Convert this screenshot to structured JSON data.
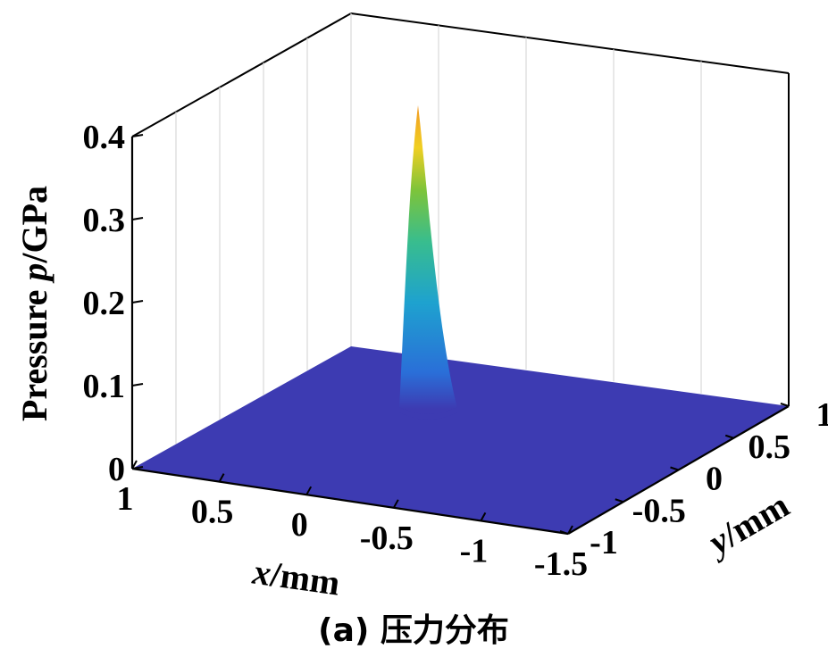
{
  "chart_data": {
    "type": "surface3d",
    "zlabel_parts": [
      "Pressure ",
      "p",
      "/GPa"
    ],
    "xlabel_parts": [
      "x",
      "/mm"
    ],
    "ylabel_parts": [
      "y",
      "/mm"
    ],
    "x_ticks": [
      "1",
      "0.5",
      "0",
      "-0.5",
      "-1",
      "-1.5"
    ],
    "x_tick_values": [
      1,
      0.5,
      0,
      -0.5,
      -1,
      -1.5
    ],
    "y_ticks": [
      "-1",
      "-0.5",
      "0",
      "0.5",
      "1"
    ],
    "y_tick_values": [
      -1,
      -0.5,
      0,
      0.5,
      1
    ],
    "z_ticks": [
      "0",
      "0.1",
      "0.2",
      "0.3",
      "0.4"
    ],
    "z_tick_values": [
      0,
      0.1,
      0.2,
      0.3,
      0.4
    ],
    "xlim": [
      -1.5,
      1
    ],
    "ylim": [
      -1,
      1
    ],
    "zlim": [
      0,
      0.4
    ],
    "peak": {
      "x": 0,
      "y": 0,
      "p": 0.38
    },
    "base_value": 0,
    "grid": true,
    "colormap": "parula",
    "colors": {
      "low": "#3d3bb2",
      "mid_blue": "#1f8fd6",
      "cyan": "#29b6c0",
      "green": "#4fc23f",
      "yellow": "#f4d020",
      "orange": "#f29a23"
    }
  },
  "caption": "(a) 压力分布"
}
